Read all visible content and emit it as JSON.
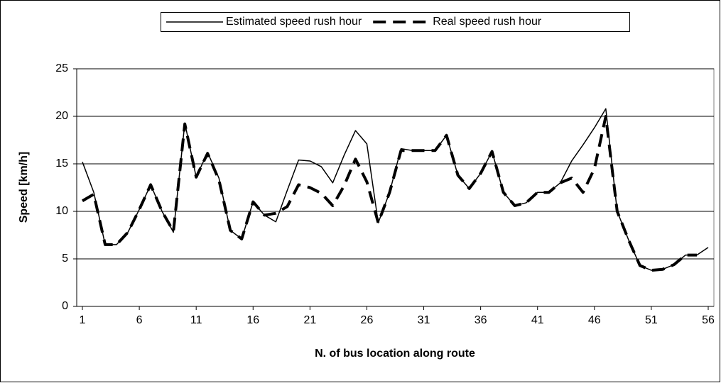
{
  "chart_data": {
    "type": "line",
    "x_label": "N. of bus location along route",
    "y_label": "Speed [km/h]",
    "x": [
      1,
      2,
      3,
      4,
      5,
      6,
      7,
      8,
      9,
      10,
      11,
      12,
      13,
      14,
      15,
      16,
      17,
      18,
      19,
      20,
      21,
      22,
      23,
      24,
      25,
      26,
      27,
      28,
      29,
      30,
      31,
      32,
      33,
      34,
      35,
      36,
      37,
      38,
      39,
      40,
      41,
      42,
      43,
      44,
      45,
      46,
      47,
      48,
      49,
      50,
      51,
      52,
      53,
      54,
      55,
      56
    ],
    "xlim": [
      0.5,
      56.5
    ],
    "xticks": [
      1,
      6,
      11,
      16,
      21,
      26,
      31,
      36,
      41,
      46,
      51,
      56
    ],
    "ylim": [
      0,
      25
    ],
    "yticks": [
      0,
      5,
      10,
      15,
      20,
      25
    ],
    "grid": true,
    "legend": "top",
    "series": [
      {
        "name": "Estimated speed rush hour",
        "color": "#000000",
        "dash": false,
        "values": [
          15.2,
          12.0,
          6.5,
          6.5,
          7.8,
          10.2,
          12.8,
          10.0,
          7.8,
          19.3,
          13.6,
          16.2,
          13.5,
          8.0,
          7.1,
          11.0,
          9.6,
          8.9,
          12.2,
          15.4,
          15.3,
          14.7,
          13.0,
          15.9,
          18.5,
          17.1,
          8.8,
          12.0,
          16.6,
          16.4,
          16.4,
          16.4,
          18.0,
          13.8,
          12.4,
          14.0,
          16.3,
          12.0,
          10.6,
          10.9,
          12.0,
          12.0,
          13.0,
          15.3,
          17.0,
          18.8,
          20.8,
          10.0,
          7.0,
          4.3,
          3.8,
          3.9,
          4.4,
          5.4,
          5.4,
          6.2
        ]
      },
      {
        "name": "Real speed rush hour",
        "color": "#000000",
        "dash": true,
        "values": [
          11.1,
          11.8,
          6.5,
          6.5,
          7.8,
          10.2,
          12.8,
          10.0,
          7.9,
          19.2,
          13.6,
          16.1,
          13.3,
          8.0,
          7.1,
          11.0,
          9.6,
          9.8,
          10.5,
          12.8,
          12.5,
          11.9,
          10.6,
          12.7,
          15.5,
          13.1,
          8.8,
          12.0,
          16.4,
          16.4,
          16.4,
          16.4,
          18.0,
          13.8,
          12.4,
          14.0,
          16.3,
          12.0,
          10.6,
          10.9,
          12.0,
          12.0,
          13.0,
          13.5,
          12.0,
          14.5,
          20.0,
          10.0,
          7.0,
          4.3,
          3.8,
          3.9,
          4.4,
          5.4,
          5.4,
          null
        ]
      }
    ]
  }
}
